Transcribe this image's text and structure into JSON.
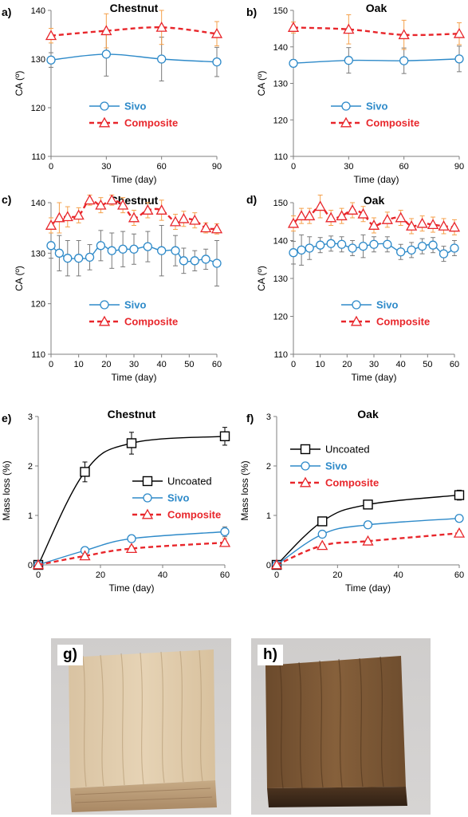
{
  "colors": {
    "sivo": "#2e8ac9",
    "composite": "#e8262b",
    "uncoated": "#000000",
    "error_composite": "#f5a04a",
    "error_sivo": "#7a7a7a"
  },
  "chart_data": [
    {
      "panel_label": "a)",
      "type": "line",
      "title": "Chestnut",
      "xlabel": "Time (day)",
      "ylabel": "CA (º)",
      "xlim": [
        0,
        90
      ],
      "ylim": [
        110,
        140
      ],
      "xticks": [
        0,
        30,
        60,
        90
      ],
      "yticks": [
        110,
        120,
        130,
        140
      ],
      "legend": "center-left",
      "series": [
        {
          "name": "Sivo",
          "marker": "circle",
          "x": [
            0,
            30,
            60,
            90
          ],
          "y": [
            129.8,
            131.0,
            130.0,
            129.4
          ],
          "err": [
            1.5,
            4.5,
            4.5,
            3.0
          ]
        },
        {
          "name": "Composite",
          "marker": "triangle",
          "x": [
            0,
            30,
            60,
            90
          ],
          "y": [
            134.8,
            135.8,
            136.5,
            135.2
          ],
          "err": [
            1.5,
            3.5,
            3.5,
            2.5
          ]
        }
      ]
    },
    {
      "panel_label": "b)",
      "type": "line",
      "title": "Oak",
      "xlabel": "Time (day)",
      "ylabel": "CA (º)",
      "xlim": [
        0,
        90
      ],
      "ylim": [
        110,
        150
      ],
      "xticks": [
        0,
        30,
        60,
        90
      ],
      "yticks": [
        110,
        120,
        130,
        140,
        150
      ],
      "legend": "center-left",
      "series": [
        {
          "name": "Sivo",
          "marker": "circle",
          "x": [
            0,
            30,
            60,
            90
          ],
          "y": [
            135.5,
            136.3,
            136.2,
            136.7
          ],
          "err": [
            1.0,
            3.5,
            3.5,
            3.5
          ]
        },
        {
          "name": "Composite",
          "marker": "triangle",
          "x": [
            0,
            30,
            60,
            90
          ],
          "y": [
            145.3,
            144.8,
            143.3,
            143.6
          ],
          "err": [
            1.5,
            4.0,
            4.0,
            3.0
          ]
        }
      ]
    },
    {
      "panel_label": "c)",
      "type": "line",
      "title": "Chestnut",
      "xlabel": "Time (day)",
      "ylabel": "CA (º)",
      "xlim": [
        0,
        60
      ],
      "ylim": [
        110,
        140
      ],
      "xticks": [
        0,
        10,
        20,
        30,
        40,
        50,
        60
      ],
      "yticks": [
        110,
        120,
        130,
        140
      ],
      "legend": "bottom-left",
      "series": [
        {
          "name": "Sivo",
          "marker": "circle",
          "x": [
            0,
            3,
            6,
            10,
            14,
            18,
            22,
            26,
            30,
            35,
            40,
            45,
            48,
            52,
            56,
            60
          ],
          "y": [
            131.5,
            130.0,
            129.0,
            129.0,
            129.2,
            131.5,
            130.5,
            130.8,
            130.8,
            131.3,
            130.5,
            130.5,
            128.5,
            128.5,
            128.8,
            128.0
          ],
          "err": [
            2.5,
            3.5,
            3.5,
            3.5,
            2.5,
            3.0,
            3.5,
            3.5,
            3.0,
            3.0,
            5.0,
            3.0,
            2.5,
            2.0,
            2.0,
            4.5
          ]
        },
        {
          "name": "Composite",
          "marker": "triangle",
          "x": [
            0,
            3,
            6,
            10,
            14,
            18,
            22,
            26,
            30,
            35,
            40,
            45,
            48,
            52,
            56,
            60
          ],
          "y": [
            135.5,
            137.0,
            137.2,
            137.5,
            140.5,
            139.5,
            140.5,
            139.5,
            137.0,
            138.5,
            138.5,
            136.2,
            136.8,
            136.5,
            135.0,
            134.8
          ],
          "err": [
            1.5,
            3.0,
            2.0,
            1.5,
            1.0,
            1.5,
            1.0,
            1.5,
            1.5,
            1.5,
            2.0,
            1.5,
            1.5,
            1.5,
            1.0,
            1.0
          ]
        }
      ]
    },
    {
      "panel_label": "d)",
      "type": "line",
      "title": "Oak",
      "xlabel": "Time (day)",
      "ylabel": "CA (º)",
      "xlim": [
        0,
        60
      ],
      "ylim": [
        110,
        150
      ],
      "xticks": [
        0,
        10,
        20,
        30,
        40,
        50,
        60
      ],
      "yticks": [
        110,
        120,
        130,
        140,
        150
      ],
      "legend": "bottom-left",
      "series": [
        {
          "name": "Sivo",
          "marker": "circle",
          "x": [
            0,
            3,
            6,
            10,
            14,
            18,
            22,
            26,
            30,
            35,
            40,
            44,
            48,
            52,
            56,
            60
          ],
          "y": [
            136.8,
            137.5,
            138.0,
            138.8,
            139.2,
            139.0,
            138.0,
            138.5,
            139.0,
            139.0,
            137.0,
            137.5,
            138.5,
            138.8,
            136.5,
            138.0
          ],
          "err": [
            3.0,
            4.0,
            3.0,
            2.0,
            2.0,
            2.0,
            2.0,
            3.0,
            2.0,
            2.0,
            2.0,
            2.0,
            2.0,
            2.0,
            2.0,
            2.0
          ]
        },
        {
          "name": "Composite",
          "marker": "triangle",
          "x": [
            0,
            3,
            6,
            10,
            14,
            18,
            22,
            26,
            30,
            35,
            40,
            44,
            48,
            52,
            56,
            60
          ],
          "y": [
            144.5,
            146.5,
            146.5,
            149.0,
            146.0,
            146.5,
            148.0,
            147.0,
            144.0,
            145.5,
            146.0,
            143.8,
            144.5,
            144.2,
            143.8,
            143.5
          ],
          "err": [
            2.0,
            2.0,
            2.0,
            3.0,
            2.0,
            2.0,
            2.0,
            2.0,
            2.0,
            2.0,
            2.0,
            2.0,
            2.0,
            2.0,
            2.0,
            2.0
          ]
        }
      ]
    },
    {
      "panel_label": "e)",
      "type": "line",
      "title": "Chestnut",
      "xlabel": "Time (day)",
      "ylabel": "Mass loss (%)",
      "xlim": [
        0,
        60
      ],
      "ylim": [
        0,
        3
      ],
      "xticks": [
        0,
        20,
        40,
        60
      ],
      "yticks": [
        0,
        1,
        2,
        3
      ],
      "legend": "center-right",
      "series": [
        {
          "name": "Uncoated",
          "marker": "square",
          "x": [
            0,
            15,
            30,
            60
          ],
          "y": [
            0,
            1.88,
            2.46,
            2.6
          ],
          "err": [
            0,
            0.2,
            0.22,
            0.18
          ]
        },
        {
          "name": "Sivo",
          "marker": "circle",
          "x": [
            0,
            15,
            30,
            60
          ],
          "y": [
            0,
            0.29,
            0.53,
            0.67
          ],
          "err": [
            0,
            0.06,
            0.07,
            0.1
          ]
        },
        {
          "name": "Composite",
          "marker": "triangle",
          "x": [
            0,
            15,
            30,
            60
          ],
          "y": [
            0,
            0.18,
            0.33,
            0.45
          ],
          "err": [
            0,
            0.05,
            0.05,
            0.08
          ]
        }
      ]
    },
    {
      "panel_label": "f)",
      "type": "line",
      "title": "Oak",
      "xlabel": "Time (day)",
      "ylabel": "Mass loss (%)",
      "xlim": [
        0,
        60
      ],
      "ylim": [
        0,
        3
      ],
      "xticks": [
        0,
        20,
        40,
        60
      ],
      "yticks": [
        0,
        1,
        2,
        3
      ],
      "legend": "top-left",
      "series": [
        {
          "name": "Uncoated",
          "marker": "square",
          "x": [
            0,
            15,
            30,
            60
          ],
          "y": [
            0,
            0.88,
            1.22,
            1.41
          ],
          "err": [
            0,
            0.05,
            0.08,
            0.1
          ]
        },
        {
          "name": "Sivo",
          "marker": "circle",
          "x": [
            0,
            15,
            30,
            60
          ],
          "y": [
            0,
            0.62,
            0.81,
            0.94
          ],
          "err": [
            0,
            0.05,
            0.06,
            0.07
          ]
        },
        {
          "name": "Composite",
          "marker": "triangle",
          "x": [
            0,
            15,
            30,
            60
          ],
          "y": [
            0,
            0.39,
            0.48,
            0.64
          ],
          "err": [
            0,
            0.04,
            0.04,
            0.05
          ]
        }
      ]
    }
  ],
  "photos": [
    {
      "label": "g)",
      "subject": "light chestnut wood block"
    },
    {
      "label": "h)",
      "subject": "dark oak wood block"
    }
  ]
}
